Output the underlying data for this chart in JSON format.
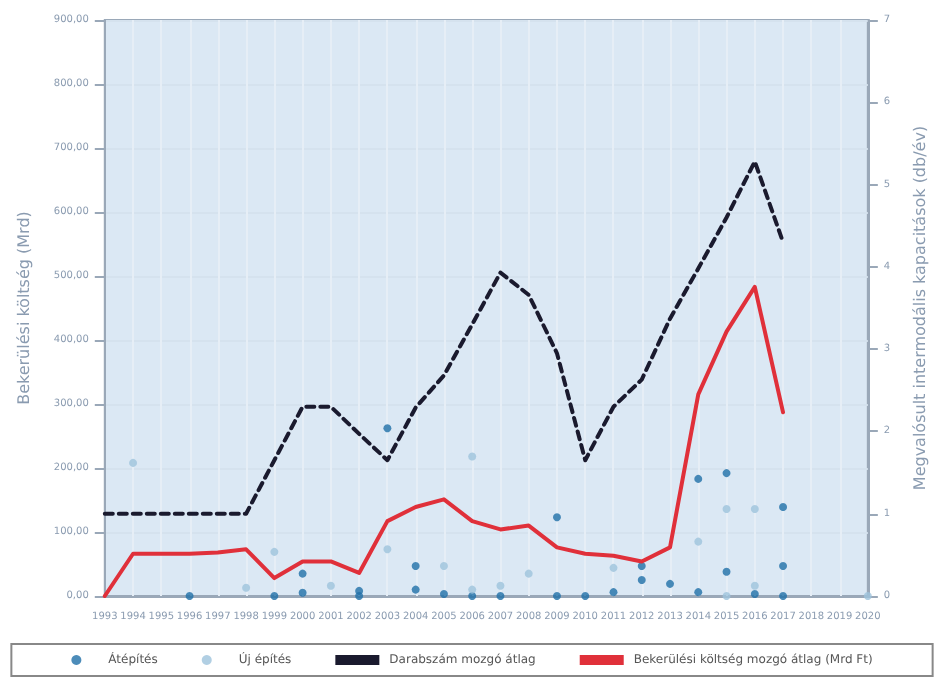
{
  "chart_data": {
    "type": "line",
    "ylabel": "Bekerülési költség (Mrd)",
    "y2label": "Megvalósult intermodális kapacitások (db/év)",
    "x": [
      1993,
      1994,
      1995,
      1996,
      1997,
      1998,
      1999,
      2000,
      2001,
      2002,
      2003,
      2004,
      2005,
      2006,
      2007,
      2008,
      2009,
      2010,
      2011,
      2012,
      2013,
      2014,
      2015,
      2016,
      2017
    ],
    "xlim": [
      1993,
      2020
    ],
    "xticks": [
      1993,
      1994,
      1995,
      1996,
      1997,
      1998,
      1999,
      2000,
      2001,
      2002,
      2003,
      2004,
      2005,
      2006,
      2007,
      2008,
      2009,
      2010,
      2011,
      2012,
      2013,
      2014,
      2015,
      2016,
      2017,
      2018,
      2019,
      2020
    ],
    "ylim": [
      0,
      900
    ],
    "yticks": [
      {
        "value": 0,
        "label": "0,00"
      },
      {
        "value": 100,
        "label": "100,00"
      },
      {
        "value": 200,
        "label": "200,00"
      },
      {
        "value": 300,
        "label": "300,00"
      },
      {
        "value": 400,
        "label": "400,00"
      },
      {
        "value": 500,
        "label": "500,00"
      },
      {
        "value": 600,
        "label": "600,00"
      },
      {
        "value": 700,
        "label": "700,00"
      },
      {
        "value": 800,
        "label": "800,00"
      },
      {
        "value": 900,
        "label": "900,00"
      }
    ],
    "y2lim": [
      0,
      7
    ],
    "y2ticks": [
      0,
      1,
      2,
      3,
      4,
      5,
      6,
      7
    ],
    "grid": true,
    "legend": "bottom",
    "series": [
      {
        "name": "Átépítés",
        "type": "scatter",
        "marker": "circle",
        "color": "#1f6fa8",
        "x": [
          1996,
          1999,
          2000,
          2000,
          2002,
          2002,
          2003,
          2004,
          2004,
          2005,
          2006,
          2007,
          2009,
          2009,
          2010,
          2011,
          2012,
          2012,
          2013,
          2014,
          2014,
          2015,
          2015,
          2016,
          2017,
          2017,
          2017
        ],
        "values": [
          0,
          0,
          5,
          35,
          8,
          0,
          262,
          47,
          10,
          3,
          0,
          0,
          123,
          0,
          0,
          6,
          25,
          47,
          19,
          183,
          6,
          192,
          38,
          3,
          139,
          47,
          0
        ]
      },
      {
        "name": "Új építés",
        "type": "scatter",
        "marker": "circle",
        "color": "#9ec3dc",
        "x": [
          1994,
          1998,
          1999,
          2001,
          2003,
          2005,
          2006,
          2006,
          2007,
          2008,
          2011,
          2014,
          2015,
          2015,
          2016,
          2016,
          2020
        ],
        "values": [
          208,
          13,
          69,
          16,
          73,
          47,
          218,
          10,
          16,
          35,
          44,
          85,
          136,
          0,
          136,
          16,
          0
        ]
      },
      {
        "name": "Darabszám mozgó átlag",
        "axis": "y2",
        "marker": "none",
        "line_style": "dashed",
        "color": "#1a1a2e",
        "values": [
          1.0,
          1.0,
          1.0,
          1.0,
          1.0,
          1.0,
          1.65,
          2.3,
          2.3,
          1.97,
          1.65,
          2.29,
          2.68,
          3.3,
          3.93,
          3.66,
          2.95,
          1.65,
          2.3,
          2.63,
          3.37,
          3.98,
          4.6,
          5.28,
          4.3
        ]
      },
      {
        "name": "Bekerülési költség mozgó átlag (Mrd Ft)",
        "marker": "none",
        "line_style": "solid",
        "color": "#e0303a",
        "values": [
          0,
          66,
          66,
          66,
          68,
          73,
          28,
          54,
          54,
          36,
          117,
          139,
          151,
          117,
          104,
          110,
          76,
          66,
          63,
          54,
          76,
          315,
          413,
          483,
          287
        ]
      }
    ]
  }
}
